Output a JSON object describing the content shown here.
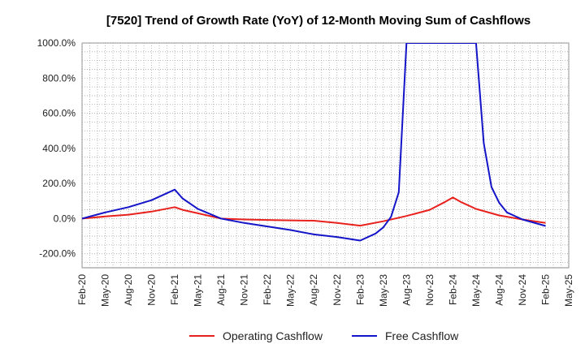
{
  "chart_data": {
    "type": "line",
    "title": "[7520]  Trend of Growth Rate (YoY) of 12-Month Moving Sum of Cashflows",
    "xlabel": "",
    "ylabel": "",
    "ylim": [
      -280,
      1000
    ],
    "yticks": [
      -200,
      0,
      200,
      400,
      600,
      800,
      1000
    ],
    "ytick_labels": [
      "-200.0%",
      "0.0%",
      "200.0%",
      "400.0%",
      "600.0%",
      "800.0%",
      "1000.0%"
    ],
    "x_start": "2020-02",
    "x_end": "2025-05",
    "xtick_labels": [
      "Feb-20",
      "May-20",
      "Aug-20",
      "Nov-20",
      "Feb-21",
      "May-21",
      "Aug-21",
      "Nov-21",
      "Feb-22",
      "May-22",
      "Aug-22",
      "Nov-22",
      "Feb-23",
      "May-23",
      "Aug-23",
      "Nov-23",
      "Feb-24",
      "May-24",
      "Aug-24",
      "Nov-24",
      "Feb-25",
      "May-25"
    ],
    "grid": true,
    "legend_position": "bottom-center",
    "series": [
      {
        "name": "Operating Cashflow",
        "color": "#e8211d",
        "points": [
          [
            "2020-02",
            0
          ],
          [
            "2020-05",
            12
          ],
          [
            "2020-08",
            22
          ],
          [
            "2020-11",
            40
          ],
          [
            "2021-02",
            65
          ],
          [
            "2021-03",
            50
          ],
          [
            "2021-05",
            30
          ],
          [
            "2021-08",
            0
          ],
          [
            "2021-11",
            -5
          ],
          [
            "2022-02",
            -8
          ],
          [
            "2022-05",
            -10
          ],
          [
            "2022-08",
            -12
          ],
          [
            "2022-11",
            -25
          ],
          [
            "2023-02",
            -40
          ],
          [
            "2023-05",
            -15
          ],
          [
            "2023-08",
            15
          ],
          [
            "2023-11",
            50
          ],
          [
            "2024-01",
            95
          ],
          [
            "2024-02",
            120
          ],
          [
            "2024-03",
            95
          ],
          [
            "2024-05",
            55
          ],
          [
            "2024-08",
            18
          ],
          [
            "2024-11",
            -5
          ],
          [
            "2025-02",
            -25
          ]
        ]
      },
      {
        "name": "Free Cashflow",
        "color": "#1414c8",
        "points": [
          [
            "2020-02",
            0
          ],
          [
            "2020-05",
            35
          ],
          [
            "2020-08",
            65
          ],
          [
            "2020-11",
            105
          ],
          [
            "2021-02",
            165
          ],
          [
            "2021-03",
            115
          ],
          [
            "2021-05",
            55
          ],
          [
            "2021-08",
            0
          ],
          [
            "2021-11",
            -25
          ],
          [
            "2022-02",
            -45
          ],
          [
            "2022-05",
            -65
          ],
          [
            "2022-08",
            -90
          ],
          [
            "2022-11",
            -105
          ],
          [
            "2023-02",
            -125
          ],
          [
            "2023-04",
            -85
          ],
          [
            "2023-05",
            -50
          ],
          [
            "2023-06",
            10
          ],
          [
            "2023-07",
            150
          ],
          [
            "2023-08",
            1000
          ],
          [
            "2024-05",
            1000
          ],
          [
            "2024-06",
            430
          ],
          [
            "2024-07",
            180
          ],
          [
            "2024-08",
            90
          ],
          [
            "2024-09",
            35
          ],
          [
            "2024-11",
            -5
          ],
          [
            "2025-02",
            -42
          ]
        ]
      }
    ]
  }
}
